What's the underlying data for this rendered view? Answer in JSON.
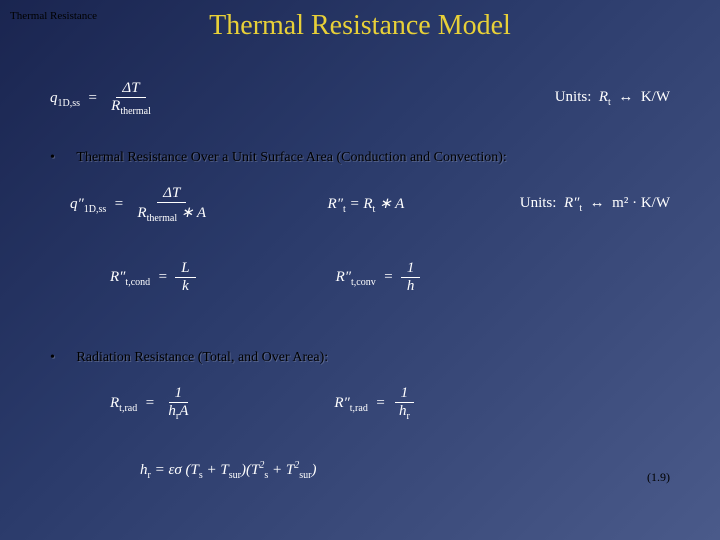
{
  "header": {
    "breadcrumb": "Thermal Resistance",
    "title": "Thermal Resistance Model"
  },
  "row1": {
    "lhs": "q",
    "lhs_sub": "1D,ss",
    "frac_num": "ΔT",
    "frac_den": "R",
    "frac_den_sub": "thermal",
    "units_label": "Units:",
    "units_sym": "R",
    "units_sub": "t",
    "arrow": "↔",
    "units_rhs": "K/W"
  },
  "bullet1": {
    "marker": "•",
    "text": "Thermal Resistance Over a Unit Surface Area (Conduction and Convection):"
  },
  "row2": {
    "lhs": "q″",
    "lhs_sub": "1D,ss",
    "frac_num": "ΔT",
    "frac_den_a": "R",
    "frac_den_a_sub": "thermal",
    "frac_den_b": " ∗ A",
    "mid_lhs": "R″",
    "mid_sub": "t",
    "mid_eq": " = R",
    "mid_eq_sub": "t",
    "mid_rhs": " ∗ A",
    "units_label": "Units:",
    "units_sym": "R″",
    "units_sub": "t",
    "arrow": "↔",
    "units_rhs": "m² · K/W"
  },
  "row3": {
    "cond_lhs": "R″",
    "cond_sub": "t,cond",
    "cond_num": "L",
    "cond_den": "k",
    "conv_lhs": "R″",
    "conv_sub": "t,conv",
    "conv_num": "1",
    "conv_den": "h"
  },
  "bullet2": {
    "marker": "•",
    "text": "Radiation Resistance (Total, and Over Area):"
  },
  "row4": {
    "a_lhs": "R",
    "a_sub": "t,rad",
    "a_num": "1",
    "a_den": "h",
    "a_den_sub": "r",
    "a_den2": "A",
    "b_lhs": "R″",
    "b_sub": "t,rad",
    "b_num": "1",
    "b_den": "h",
    "b_den_sub": "r"
  },
  "row5": {
    "lhs": "h",
    "lhs_sub": "r",
    "eq": " = εσ (T",
    "ts_sub": "s",
    "plus": " + T",
    "tsur_sub": "sur",
    "close1": ")(T",
    "sup2a": "2",
    "sub_s2": "s",
    "plus2": " + T",
    "sup2b": "2",
    "sub_sur2": "sur",
    "close2": ")"
  },
  "eqnum": "(1.9)"
}
